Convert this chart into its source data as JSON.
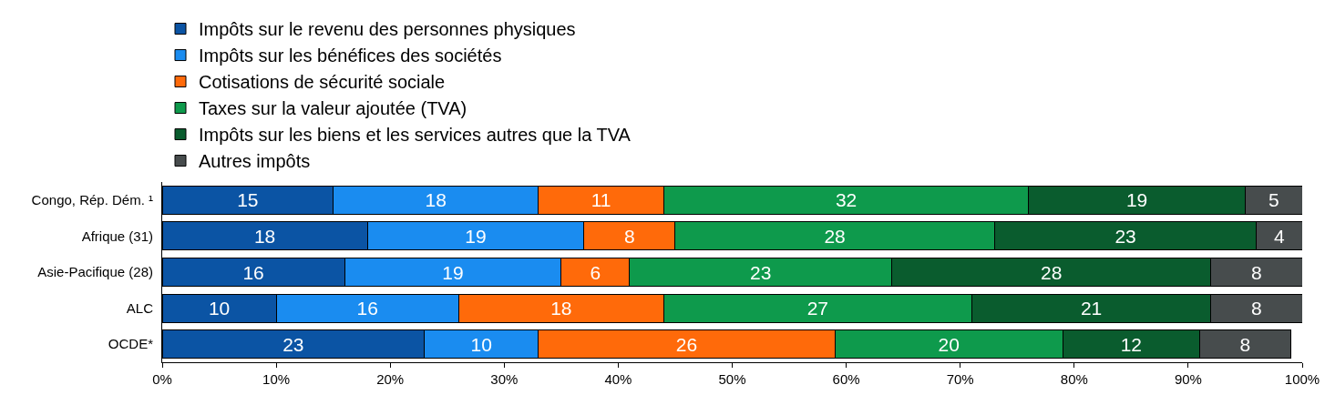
{
  "chart_data": {
    "type": "bar",
    "orientation": "horizontal",
    "stacked": true,
    "data_labels": true,
    "grid": false,
    "legend": "top",
    "categories": [
      "Congo, Rép. Dém. ¹",
      "Afrique (31)",
      "Asie-Pacifique (28)",
      "ALC",
      "OCDE*"
    ],
    "series": [
      {
        "name": "Impôts sur le revenu des personnes physiques",
        "color": "#0b54a4",
        "values": [
          15,
          18,
          16,
          10,
          23
        ]
      },
      {
        "name": "Impôts sur les bénéfices des sociétés",
        "color": "#1a8cf0",
        "values": [
          18,
          19,
          19,
          16,
          10
        ]
      },
      {
        "name": "Cotisations de sécurité sociale",
        "color": "#ff6a0a",
        "values": [
          11,
          8,
          6,
          18,
          26
        ]
      },
      {
        "name": "Taxes sur la valeur ajoutée (TVA)",
        "color": "#0e9a4c",
        "values": [
          32,
          28,
          23,
          27,
          20
        ]
      },
      {
        "name": "Impôts sur les biens et les services autres que la TVA",
        "color": "#0a5c2e",
        "values": [
          19,
          23,
          28,
          21,
          12
        ]
      },
      {
        "name": "Autres impôts",
        "color": "#474c4d",
        "values": [
          5,
          4,
          8,
          8,
          8
        ]
      }
    ],
    "xlim": [
      0,
      100
    ],
    "xticks": [
      {
        "value": 0,
        "label": "0%"
      },
      {
        "value": 10,
        "label": "10%"
      },
      {
        "value": 20,
        "label": "20%"
      },
      {
        "value": 30,
        "label": "30%"
      },
      {
        "value": 40,
        "label": "40%"
      },
      {
        "value": 50,
        "label": "50%"
      },
      {
        "value": 60,
        "label": "60%"
      },
      {
        "value": 70,
        "label": "70%"
      },
      {
        "value": 80,
        "label": "80%"
      },
      {
        "value": 90,
        "label": "90%"
      },
      {
        "value": 100,
        "label": "100%"
      }
    ]
  }
}
